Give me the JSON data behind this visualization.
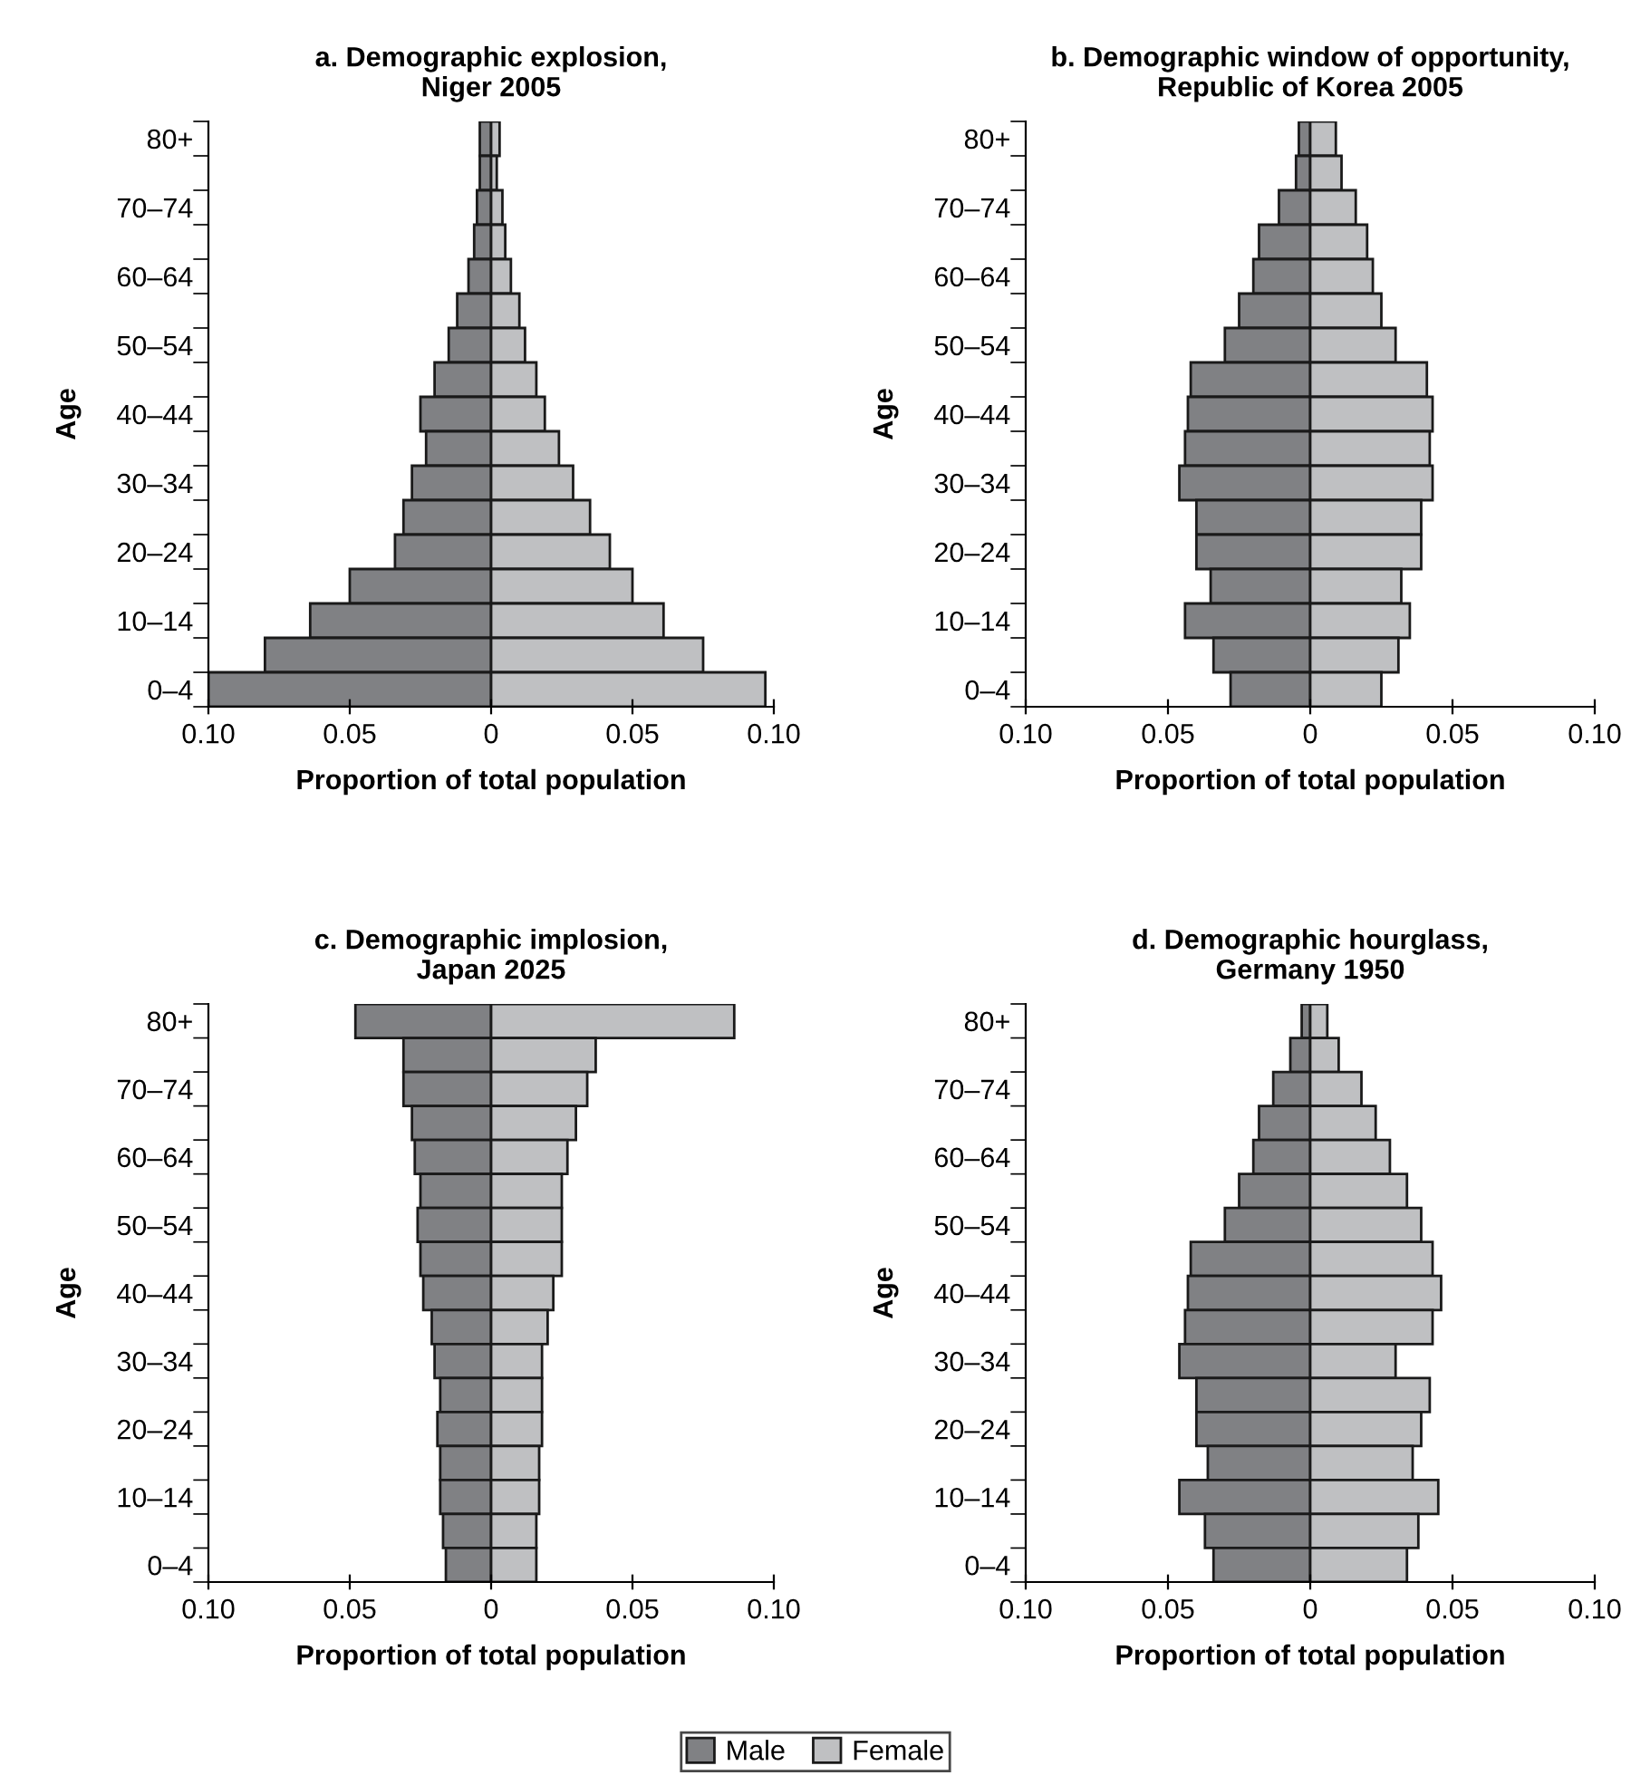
{
  "chart_data": [
    {
      "type": "bar",
      "orientation": "horizontal",
      "stacked": true,
      "legend": "bottom",
      "title": "a. Demographic explosion,\nNiger 2005",
      "xlabel": "Proportion of total population",
      "ylabel": "Age",
      "categories": [
        "80+",
        null,
        "70–74",
        null,
        "60–64",
        null,
        "50–54",
        null,
        "40–44",
        null,
        "30–34",
        null,
        "20–24",
        null,
        "10–14",
        null,
        "0–4"
      ],
      "series": [
        {
          "name": "Male",
          "color": "#808184",
          "values": [
            -0.004,
            -0.004,
            -0.005,
            -0.006,
            -0.008,
            -0.012,
            -0.015,
            -0.02,
            -0.025,
            -0.023,
            -0.028,
            -0.031,
            -0.034,
            -0.05,
            -0.064,
            -0.08,
            -0.1
          ]
        },
        {
          "name": "Female",
          "color": "#bfc0c2",
          "values": [
            0.003,
            0.002,
            0.004,
            0.005,
            0.007,
            0.01,
            0.012,
            0.016,
            0.019,
            0.024,
            0.029,
            0.035,
            0.042,
            0.05,
            0.061,
            0.075,
            0.097
          ]
        }
      ],
      "xlim": [
        -0.1,
        0.1
      ],
      "xticks": [
        {
          "value": -0.1,
          "label": "0.10"
        },
        {
          "value": -0.05,
          "label": "0.05"
        },
        0,
        0.05,
        {
          "value": 0.1,
          "label": "0.10"
        }
      ],
      "grid": false
    },
    {
      "type": "bar",
      "orientation": "horizontal",
      "stacked": true,
      "title": "b. Demographic window of opportunity,\nRepublic of Korea 2005",
      "xlabel": "Proportion of total population",
      "ylabel": "Age",
      "categories": [
        "80+",
        null,
        "70–74",
        null,
        "60–64",
        null,
        "50–54",
        null,
        "40–44",
        null,
        "30–34",
        null,
        "20–24",
        null,
        "10–14",
        null,
        "0–4"
      ],
      "series": [
        {
          "color": "#808184",
          "values": [
            -0.004,
            -0.005,
            -0.011,
            -0.018,
            -0.02,
            -0.025,
            -0.03,
            -0.042,
            -0.043,
            -0.044,
            -0.046,
            -0.04,
            -0.04,
            -0.035,
            -0.044,
            -0.034,
            -0.028
          ]
        },
        {
          "color": "#bfc0c2",
          "values": [
            0.009,
            0.011,
            0.016,
            0.02,
            0.022,
            0.025,
            0.03,
            0.041,
            0.043,
            0.042,
            0.043,
            0.039,
            0.039,
            0.032,
            0.035,
            0.031,
            0.025
          ]
        }
      ],
      "xlim": [
        -0.1,
        0.1
      ],
      "xticks": [
        {
          "value": -0.1,
          "label": "0.10"
        },
        {
          "value": -0.05,
          "label": "0.05"
        },
        0,
        0.05,
        {
          "value": 0.1,
          "label": "0.10"
        }
      ],
      "grid": false
    },
    {
      "type": "bar",
      "orientation": "horizontal",
      "stacked": true,
      "title": "c. Demographic implosion,\nJapan 2025",
      "xlabel": "Proportion of total population",
      "ylabel": "Age",
      "categories": [
        "80+",
        null,
        "70–74",
        null,
        "60–64",
        null,
        "50–54",
        null,
        "40–44",
        null,
        "30–34",
        null,
        "20–24",
        null,
        "10–14",
        null,
        "0–4"
      ],
      "series": [
        {
          "color": "#808184",
          "values": [
            -0.048,
            -0.031,
            -0.031,
            -0.028,
            -0.027,
            -0.025,
            -0.026,
            -0.025,
            -0.024,
            -0.021,
            -0.02,
            -0.018,
            -0.019,
            -0.018,
            -0.018,
            -0.017,
            -0.016
          ]
        },
        {
          "color": "#bfc0c2",
          "values": [
            0.086,
            0.037,
            0.034,
            0.03,
            0.027,
            0.025,
            0.025,
            0.025,
            0.022,
            0.02,
            0.018,
            0.018,
            0.018,
            0.017,
            0.017,
            0.016,
            0.016
          ]
        }
      ],
      "xlim": [
        -0.1,
        0.1
      ],
      "xticks": [
        {
          "value": -0.1,
          "label": "0.10"
        },
        {
          "value": -0.05,
          "label": "0.05"
        },
        0,
        0.05,
        {
          "value": 0.1,
          "label": "0.10"
        }
      ],
      "grid": false
    },
    {
      "type": "bar",
      "orientation": "horizontal",
      "stacked": true,
      "title": "d. Demographic hourglass,\nGermany 1950",
      "xlabel": "Proportion of total population",
      "ylabel": "Age",
      "categories": [
        "80+",
        null,
        "70–74",
        null,
        "60–64",
        null,
        "50–54",
        null,
        "40–44",
        null,
        "30–34",
        null,
        "20–24",
        null,
        "10–14",
        null,
        "0–4"
      ],
      "series": [
        {
          "color": "#808184",
          "values": [
            -0.003,
            -0.007,
            -0.013,
            -0.018,
            -0.02,
            -0.025,
            -0.03,
            -0.042,
            -0.043,
            -0.044,
            -0.046,
            -0.04,
            -0.04,
            -0.036,
            -0.046,
            -0.037,
            -0.034
          ]
        },
        {
          "color": "#bfc0c2",
          "values": [
            0.006,
            0.01,
            0.018,
            0.023,
            0.028,
            0.034,
            0.039,
            0.043,
            0.046,
            0.043,
            0.03,
            0.042,
            0.039,
            0.036,
            0.045,
            0.038,
            0.034
          ]
        }
      ],
      "xlim": [
        -0.1,
        0.1
      ],
      "xticks": [
        {
          "value": -0.1,
          "label": "0.10"
        },
        {
          "value": -0.05,
          "label": "0.05"
        },
        0,
        0.05,
        {
          "value": 0.1,
          "label": "0.10"
        }
      ],
      "grid": false
    }
  ]
}
